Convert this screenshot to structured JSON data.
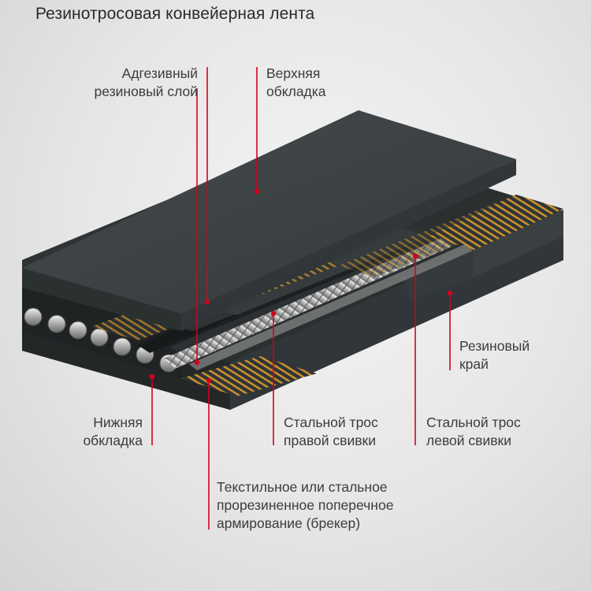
{
  "title": "Резинотросовая конвейерная лента",
  "labels": {
    "adhesive_layer": [
      "Адгезивный",
      "резиновый слой"
    ],
    "top_cover": [
      "Верхняя",
      "обкладка"
    ],
    "rubber_edge": [
      "Резиновый",
      "край"
    ],
    "bottom_cover": [
      "Нижняя",
      "обкладка"
    ],
    "right_lay_cord": [
      "Стальной трос",
      "правой свивки"
    ],
    "left_lay_cord": [
      "Стальной трос",
      "левой свивки"
    ],
    "breaker": [
      "Текстильное или стальное",
      "прорезиненное поперечное",
      "армирование (брекер)"
    ]
  },
  "colors": {
    "pointer_line": "#d6001c",
    "belt_top": "#3b4142",
    "belt_side": "#262b2c",
    "breaker_stripe": "#c8902e",
    "steel_cord": "#cfcfcf"
  }
}
